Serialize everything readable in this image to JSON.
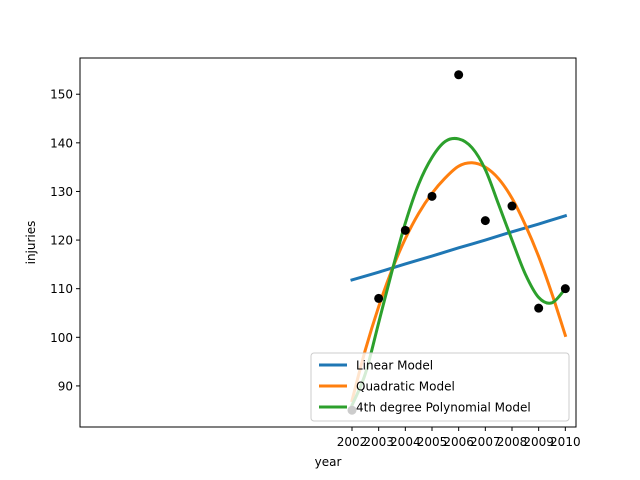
{
  "chart_data": {
    "type": "line",
    "title": "",
    "xlabel": "year",
    "ylabel": "injuries",
    "xlim": [
      1991.8,
      2010.4
    ],
    "ylim": [
      81.55,
      157.45
    ],
    "x_ticks": [
      2002,
      2003,
      2004,
      2005,
      2006,
      2007,
      2008,
      2009,
      2010
    ],
    "y_ticks": [
      90,
      100,
      110,
      120,
      130,
      140,
      150
    ],
    "grid": false,
    "legend_position": "lower-right",
    "scatter": {
      "x": [
        2002,
        2003,
        2004,
        2005,
        2006,
        2007,
        2008,
        2009,
        2010
      ],
      "y": [
        85,
        108,
        122,
        129,
        154,
        124,
        127,
        106,
        110
      ],
      "color": "#000000"
    },
    "series": [
      {
        "name": "Linear Model",
        "color": "#1f77b4",
        "x": [
          2002,
          2003,
          2004,
          2005,
          2006,
          2007,
          2008,
          2009,
          2010
        ],
        "y": [
          111.8,
          113.4,
          115.1,
          116.7,
          118.4,
          120.0,
          121.7,
          123.3,
          125.0
        ]
      },
      {
        "name": "Quadratic Model",
        "color": "#ff7f0e",
        "x": [
          2002,
          2002.5,
          2003,
          2003.5,
          2004,
          2004.5,
          2005,
          2005.5,
          2006,
          2006.5,
          2007,
          2007.5,
          2008,
          2008.5,
          2009,
          2009.5,
          2010
        ],
        "y": [
          87.0,
          97.4,
          106.3,
          113.9,
          120.3,
          125.5,
          129.6,
          132.8,
          135.2,
          135.9,
          135.0,
          132.6,
          128.6,
          123.1,
          116.6,
          108.9,
          100.4
        ]
      },
      {
        "name": "4th degree Polynomial Model",
        "color": "#2ca02c",
        "x": [
          2002,
          2002.5,
          2003,
          2003.5,
          2004,
          2004.5,
          2005,
          2005.5,
          2006,
          2006.5,
          2007,
          2007.5,
          2008,
          2008.5,
          2009,
          2009.5,
          2010
        ],
        "y": [
          86.0,
          92.5,
          103.0,
          113.6,
          123.5,
          131.5,
          137.0,
          140.3,
          140.8,
          139.0,
          134.5,
          127.3,
          120.0,
          113.0,
          108.2,
          107.1,
          110.0
        ]
      }
    ]
  }
}
